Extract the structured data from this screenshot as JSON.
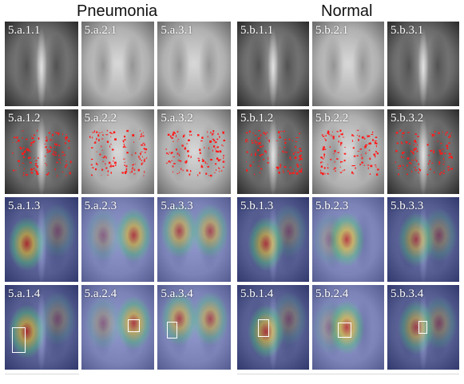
{
  "headings": {
    "left": "Pneumonia",
    "right": "Normal"
  },
  "pneumonia": {
    "rows": [
      {
        "type": "original",
        "cells": [
          "5.a.1.1",
          "5.a.2.1",
          "5.a.3.1"
        ]
      },
      {
        "type": "red-overlay",
        "cells": [
          "5.a.1.2",
          "5.a.2.2",
          "5.a.3.2"
        ]
      },
      {
        "type": "heatmap",
        "cells": [
          "5.a.1.3",
          "5.a.2.3",
          "5.a.3.3"
        ]
      },
      {
        "type": "heatmap-box",
        "cells": [
          "5.a.1.4",
          "5.a.2.4",
          "5.a.3.4"
        ]
      }
    ]
  },
  "normal": {
    "rows": [
      {
        "type": "original",
        "cells": [
          "5.b.1.1",
          "5.b.2.1",
          "5.b.3.1"
        ]
      },
      {
        "type": "red-overlay",
        "cells": [
          "5.b.1.2",
          "5.b.2.2",
          "5.b.3.2"
        ]
      },
      {
        "type": "heatmap",
        "cells": [
          "5.b.1.3",
          "5.b.2.3",
          "5.b.3.3"
        ]
      },
      {
        "type": "heatmap-box",
        "cells": [
          "5.b.1.4",
          "5.b.2.4",
          "5.b.3.4"
        ]
      }
    ]
  },
  "colors": {
    "highlight": "#ff1a1a",
    "box": "#ffffff",
    "heat_background": "#3b4cc0"
  }
}
